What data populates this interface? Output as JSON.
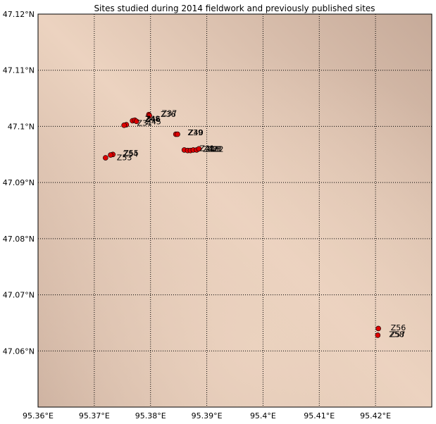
{
  "title": "Sites studied during 2014 fieldwork and previously published sites",
  "chart_data": {
    "type": "scatter",
    "title": "Sites studied during 2014 fieldwork and previously published sites",
    "xlim": [
      95.36,
      95.43
    ],
    "ylim": [
      47.05,
      47.12
    ],
    "grid": true,
    "x_ticks": [
      {
        "v": 95.36,
        "label": "95.36°E"
      },
      {
        "v": 95.37,
        "label": "95.37°E"
      },
      {
        "v": 95.38,
        "label": "95.38°E"
      },
      {
        "v": 95.39,
        "label": "95.39°E"
      },
      {
        "v": 95.4,
        "label": "95.4°E"
      },
      {
        "v": 95.41,
        "label": "95.41°E"
      },
      {
        "v": 95.42,
        "label": "95.42°E"
      }
    ],
    "y_ticks": [
      {
        "v": 47.06,
        "label": "47.06°N"
      },
      {
        "v": 47.07,
        "label": "47.07°N"
      },
      {
        "v": 47.08,
        "label": "47.08°N"
      },
      {
        "v": 47.09,
        "label": "47.09°N"
      },
      {
        "v": 47.1,
        "label": "47.1°N"
      },
      {
        "v": 47.11,
        "label": "47.11°N"
      },
      {
        "v": 47.12,
        "label": "47.12°N"
      }
    ],
    "marker_color": "#dd0000",
    "background": {
      "light": "#ecd3c0",
      "dark": "#c6aa99"
    },
    "points": [
      {
        "x": 95.3797,
        "y": 47.1021
      },
      {
        "x": 95.3798,
        "y": 47.1019
      },
      {
        "x": 95.3768,
        "y": 47.101
      },
      {
        "x": 95.3772,
        "y": 47.1011
      },
      {
        "x": 95.3775,
        "y": 47.1009
      },
      {
        "x": 95.3757,
        "y": 47.1003
      },
      {
        "x": 95.3753,
        "y": 47.1002
      },
      {
        "x": 95.3845,
        "y": 47.0986
      },
      {
        "x": 95.3848,
        "y": 47.0986
      },
      {
        "x": 95.386,
        "y": 47.0958
      },
      {
        "x": 95.3866,
        "y": 47.0957
      },
      {
        "x": 95.3871,
        "y": 47.0957
      },
      {
        "x": 95.3876,
        "y": 47.0958
      },
      {
        "x": 95.3882,
        "y": 47.0958
      },
      {
        "x": 95.3886,
        "y": 47.096
      },
      {
        "x": 95.3733,
        "y": 47.095
      },
      {
        "x": 95.3729,
        "y": 47.0949
      },
      {
        "x": 95.372,
        "y": 47.0944
      },
      {
        "x": 95.4205,
        "y": 47.064
      },
      {
        "x": 95.4204,
        "y": 47.0628
      }
    ],
    "labels": [
      {
        "text": "Z37",
        "x": 95.382,
        "y": 47.1024
      },
      {
        "text": "Z36",
        "x": 95.3818,
        "y": 47.1022
      },
      {
        "text": "Z48",
        "x": 95.379,
        "y": 47.1014
      },
      {
        "text": "Z46",
        "x": 95.3791,
        "y": 47.1013
      },
      {
        "text": "Z45",
        "x": 95.3792,
        "y": 47.1009
      },
      {
        "text": "Z31",
        "x": 95.3776,
        "y": 47.1006
      },
      {
        "text": "Z40",
        "x": 95.3867,
        "y": 47.0989
      },
      {
        "text": "Z39",
        "x": 95.3866,
        "y": 47.0989
      },
      {
        "text": "Z41",
        "x": 95.3887,
        "y": 47.0961
      },
      {
        "text": "Z42",
        "x": 95.3893,
        "y": 47.096
      },
      {
        "text": "Z43",
        "x": 95.3897,
        "y": 47.096
      },
      {
        "text": "Z33",
        "x": 95.39,
        "y": 47.096
      },
      {
        "text": "Z32",
        "x": 95.3903,
        "y": 47.096
      },
      {
        "text": "Z55",
        "x": 95.3752,
        "y": 47.0953
      },
      {
        "text": "Z54",
        "x": 95.3751,
        "y": 47.0951
      },
      {
        "text": "Z53",
        "x": 95.374,
        "y": 47.0945
      },
      {
        "text": "Z56",
        "x": 95.4227,
        "y": 47.0642
      },
      {
        "text": "Z58",
        "x": 95.4224,
        "y": 47.063
      },
      {
        "text": "Z57",
        "x": 95.4226,
        "y": 47.063
      }
    ]
  }
}
